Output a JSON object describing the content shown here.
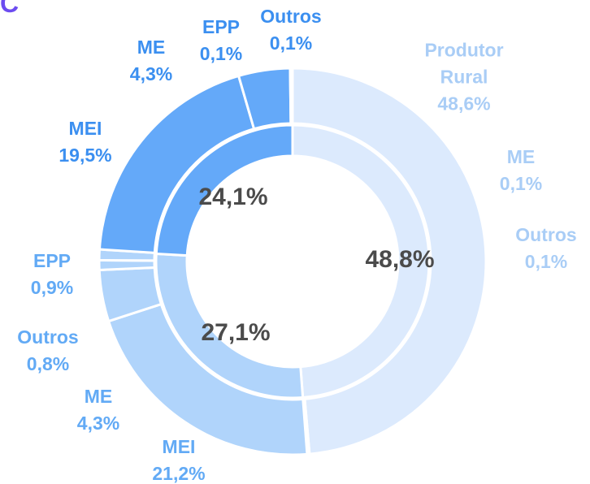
{
  "panel_label": "C",
  "chart_data": {
    "type": "nested_donut",
    "groups": [
      {
        "color": "#dceafd",
        "label_color": "#a9cdf6",
        "value": 48.8,
        "value_label": "48,8%",
        "segments": [
          {
            "name": "Produtor Rural",
            "value": 48.6,
            "value_label": "48,6%"
          },
          {
            "name": "ME",
            "value": 0.1,
            "value_label": "0,1%"
          },
          {
            "name": "Outros",
            "value": 0.1,
            "value_label": "0,1%"
          }
        ]
      },
      {
        "color": "#b0d4fb",
        "label_color": "#62aaf5",
        "value": 27.1,
        "value_label": "27,1%",
        "segments": [
          {
            "name": "MEI",
            "value": 21.2,
            "value_label": "21,2%"
          },
          {
            "name": "ME",
            "value": 4.3,
            "value_label": "4,3%"
          },
          {
            "name": "Outros",
            "value": 0.8,
            "value_label": "0,8%"
          },
          {
            "name": "EPP",
            "value": 0.9,
            "value_label": "0,9%"
          }
        ]
      },
      {
        "color": "#64a9f9",
        "label_color": "#3b8ff0",
        "value": 24.1,
        "value_label": "24,1%",
        "segments": [
          {
            "name": "MEI",
            "value": 19.5,
            "value_label": "19,5%"
          },
          {
            "name": "ME",
            "value": 4.3,
            "value_label": "4,3%"
          },
          {
            "name": "EPP",
            "value": 0.1,
            "value_label": "0,1%"
          },
          {
            "name": "Outros",
            "value": 0.1,
            "value_label": "0,1%"
          }
        ]
      }
    ]
  }
}
